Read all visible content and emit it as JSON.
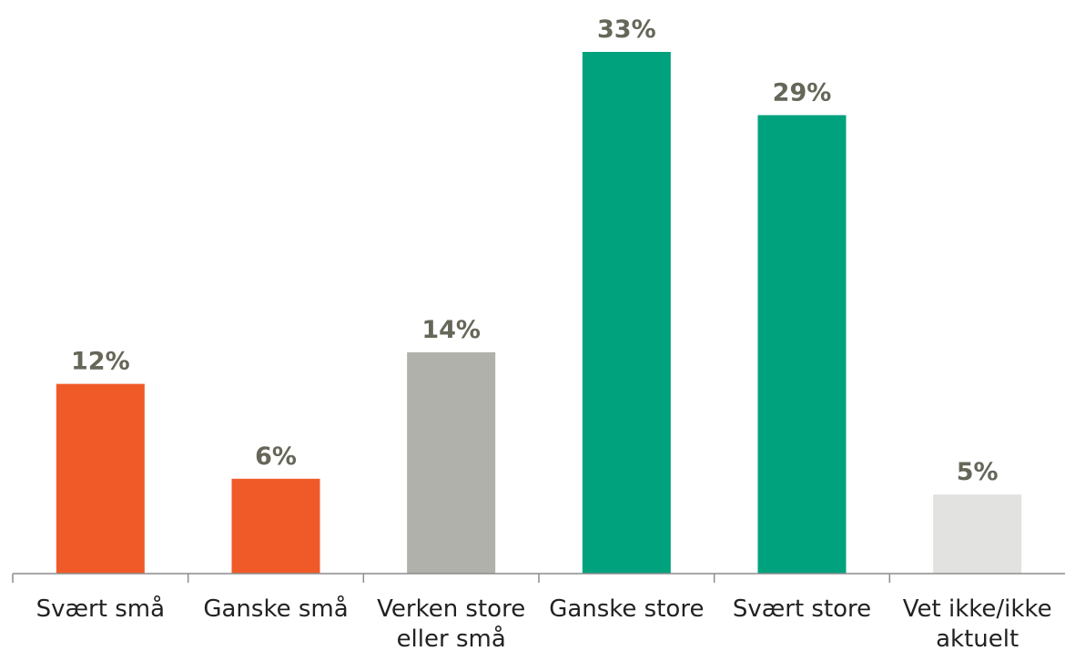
{
  "chart_data": {
    "type": "bar",
    "title": "",
    "xlabel": "",
    "ylabel": "",
    "ylim": [
      0,
      35
    ],
    "grid": false,
    "legend": "none",
    "categories": [
      [
        "Svært små"
      ],
      [
        "Ganske små"
      ],
      [
        "Verken store",
        "eller små"
      ],
      [
        "Ganske store"
      ],
      [
        "Svært store"
      ],
      [
        "Vet ikke/ikke",
        "aktuelt"
      ]
    ],
    "values": [
      12,
      6,
      14,
      33,
      29,
      5
    ],
    "value_labels": [
      "12%",
      "6%",
      "14%",
      "33%",
      "29%",
      "5%"
    ],
    "colors": [
      "#f05a28",
      "#f05a28",
      "#b0b1aa",
      "#00a27d",
      "#00a27d",
      "#e2e2e0"
    ]
  }
}
